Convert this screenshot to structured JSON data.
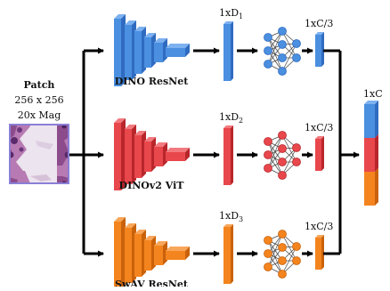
{
  "patch": {
    "title": "Patch",
    "size": "256 x 256",
    "magnification": "20x Mag"
  },
  "branches": [
    {
      "key": "dino",
      "name": "DINO ResNet",
      "dim_prefix": "1xD",
      "dim_sub": "1",
      "proj_label": "1xC/3",
      "color": "#4a8fe0",
      "color_dark": "#2f6bc0",
      "color_light": "#7db1f0"
    },
    {
      "key": "dinov2",
      "name": "DINOv2 ViT",
      "dim_prefix": "1xD",
      "dim_sub": "2",
      "proj_label": "1xC/3",
      "color": "#e8474c",
      "color_dark": "#b8262b",
      "color_light": "#f27a7e"
    },
    {
      "key": "swav",
      "name": "SwAV ResNet",
      "dim_prefix": "1xD",
      "dim_sub": "3",
      "proj_label": "1xC/3",
      "color": "#f4841e",
      "color_dark": "#c9620a",
      "color_light": "#f8a65a"
    }
  ],
  "output": {
    "label": "1xC",
    "segment_colors": [
      "#4a8fe0",
      "#e8474c",
      "#f4841e"
    ]
  }
}
